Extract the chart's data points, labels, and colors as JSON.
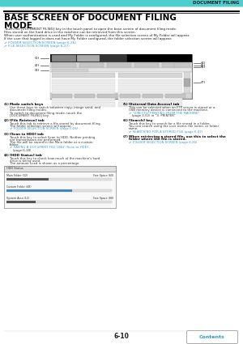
{
  "page_title_line1": "BASE SCREEN OF DOCUMENT FILING",
  "page_title_line2": "MODE",
  "header_label": "DOCUMENT FILING",
  "header_bg": "#4ecfcf",
  "title_color": "#000000",
  "body_lines": [
    "Touch the [DOCUMENT FILING] key in the touch panel to open the base screen of document filing mode.",
    "Files stored on the hard drive in the machine can be retrieved from this screen.",
    "When user authentication is used and My Folder is configured, the file selection screen of My Folder will appear.",
    "If the user that logged in does not have My Folder configured, the folder selection screen will appear."
  ],
  "link_color": "#3399cc",
  "link1": "☞ FOLDER SELECTION SCREEN (page 6-26)",
  "link2": "☞ FILE SELECTION SCREEN (page 6-27)",
  "page_number": "6-10",
  "contents_label": "Contents",
  "bg_color": "#ffffff",
  "sec_left": [
    {
      "num": "(1)",
      "title": "Mode switch keys",
      "body": "Use these keys to switch between copy, image send, and\ndocument filing modes.\nTo switch to document filing mode, touch the\n[DOCUMENT FILING] key."
    },
    {
      "num": "(2)",
      "title": "[File Retrieve] tab",
      "body": "Touch this tab to retrieve a file stored by document filing.\nThe folder selection screen will appear.\n☞ FOLDER SELECTION SCREEN (page 6-26)"
    },
    {
      "num": "(3)",
      "title": "[Scan to HDD] tab",
      "body": "Touch this key to select Scan to HDD. Neither printing\nnor transmission are performed.\nThe file will be stored in the Main folder or a custom\nfolder.\n☞ SAVING A DOCUMENT FILE ONLY (Scan to HDD)\n   (page 6-18)"
    },
    {
      "num": "(4)",
      "title": "[HDD Status] tab",
      "body": "Touch this key to check how much of the machine's hard\ndrive is being used.\nThe amount used is shown as a percentage."
    }
  ],
  "sec_right": [
    {
      "num": "(5)",
      "title": "[External Data Access] tab",
      "body": "This can be selected when an FTP server is stored or a\nUSB memory device is connected to the machine.\n☞ \"DIRECTLY PRINTING FROM THE MACHINE\"\n   (page 3-52) in \"3. PRINTER\""
    },
    {
      "num": "(6)",
      "title": "[Search] key",
      "body": "Touch this key to search for a file stored in a folder.\nYou can search using the user name, file name, or folder\nname.\n☞ SEARCHING FOR A STORED FILE (page 6-47)"
    },
    {
      "num": "(7)",
      "title": "When retrieving a stored file, use this to select the\nfolder where the file is stored.",
      "body": "☞ FOLDER SELECTION SCREEN (page 6-26)"
    }
  ]
}
